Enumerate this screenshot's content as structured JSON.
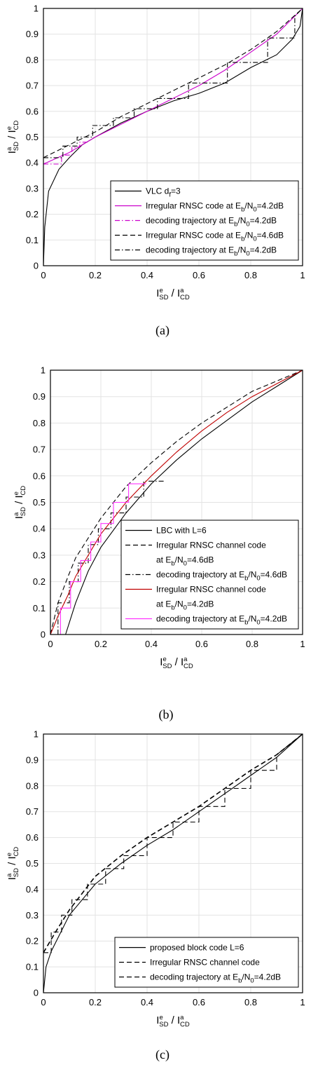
{
  "chart_data": [
    {
      "type": "line",
      "caption": "(a)",
      "legend": "lower right",
      "grid": true,
      "xlabel": [
        {
          "base": "I",
          "sup": "e",
          "sub": "SD"
        },
        " / ",
        {
          "base": "I",
          "sup": "a",
          "sub": "CD"
        }
      ],
      "ylabel": [
        {
          "base": "I",
          "sup": "a",
          "sub": "SD"
        },
        " / ",
        {
          "base": "I",
          "sup": "e",
          "sub": "CD"
        }
      ],
      "xlim": [
        0,
        1
      ],
      "ylim": [
        0,
        1
      ],
      "xticks": [
        0,
        0.2,
        0.4,
        0.6,
        0.8,
        1
      ],
      "yticks": [
        0,
        0.1,
        0.2,
        0.3,
        0.4,
        0.5,
        0.6,
        0.7,
        0.8,
        0.9,
        1
      ],
      "series": [
        {
          "name": [
            [
              "VLC d",
              {
                "sub": "f"
              },
              "=3"
            ]
          ],
          "color": "#000000",
          "linestyle": "solid",
          "x": [
            0,
            0.005,
            0.02,
            0.06,
            0.1,
            0.15,
            0.2,
            0.3,
            0.4,
            0.5,
            0.6,
            0.7,
            0.8,
            0.9,
            0.96,
            0.99,
            1
          ],
          "values": [
            0,
            0.15,
            0.29,
            0.375,
            0.42,
            0.47,
            0.5,
            0.555,
            0.6,
            0.64,
            0.67,
            0.71,
            0.77,
            0.82,
            0.88,
            0.93,
            1
          ]
        },
        {
          "name": [
            [
              "Irregular RNSC code at E",
              {
                "sub": "b"
              },
              "/N",
              {
                "sub": "0"
              },
              "=4.2dB"
            ]
          ],
          "color": "#cc00cc",
          "linestyle": "solid",
          "x": [
            0,
            0.1,
            0.2,
            0.3,
            0.4,
            0.5,
            0.6,
            0.7,
            0.8,
            0.9,
            1
          ],
          "values": [
            0.395,
            0.44,
            0.5,
            0.55,
            0.6,
            0.65,
            0.7,
            0.76,
            0.83,
            0.9,
            1
          ]
        },
        {
          "name": [
            [
              "decoding trajectory at E",
              {
                "sub": "b"
              },
              "/N",
              {
                "sub": "0"
              },
              "=4.2dB"
            ]
          ],
          "color": "#cc00cc",
          "linestyle": "dashdot",
          "x": [
            0,
            0.07,
            0.07,
            0.11,
            0.11,
            0.14,
            0.14,
            0.17
          ],
          "values": [
            0.395,
            0.395,
            0.43,
            0.43,
            0.46,
            0.46,
            0.48,
            0.48
          ]
        },
        {
          "name": [
            [
              "Irregular RNSC code at E",
              {
                "sub": "b"
              },
              "/N",
              {
                "sub": "0"
              },
              "=4.6dB"
            ]
          ],
          "color": "#000000",
          "linestyle": "dashed",
          "x": [
            0,
            0.1,
            0.2,
            0.3,
            0.4,
            0.5,
            0.6,
            0.7,
            0.8,
            0.9,
            1
          ],
          "values": [
            0.42,
            0.47,
            0.52,
            0.58,
            0.63,
            0.68,
            0.73,
            0.78,
            0.84,
            0.91,
            1
          ]
        },
        {
          "name": [
            [
              "decoding trajectory at E",
              {
                "sub": "b"
              },
              "/N",
              {
                "sub": "0"
              },
              "=4.2dB"
            ]
          ],
          "color": "#000000",
          "linestyle": "dashdot",
          "x": [
            0,
            0.075,
            0.075,
            0.13,
            0.13,
            0.19,
            0.19,
            0.27,
            0.27,
            0.35,
            0.35,
            0.44,
            0.44,
            0.56,
            0.56,
            0.71,
            0.71,
            0.865,
            0.865,
            0.97,
            0.97,
            1
          ],
          "values": [
            0.42,
            0.42,
            0.465,
            0.465,
            0.5,
            0.5,
            0.545,
            0.545,
            0.575,
            0.575,
            0.61,
            0.61,
            0.65,
            0.65,
            0.71,
            0.71,
            0.79,
            0.79,
            0.885,
            0.885,
            0.97,
            1
          ]
        }
      ]
    },
    {
      "type": "line",
      "caption": "(b)",
      "legend": "lower right",
      "grid": true,
      "xlabel": [
        {
          "base": "I",
          "sup": "e",
          "sub": "SD"
        },
        " / ",
        {
          "base": "I",
          "sup": "a",
          "sub": "CD"
        }
      ],
      "ylabel": [
        {
          "base": "I",
          "sup": "a",
          "sub": "SD"
        },
        " / ",
        {
          "base": "I",
          "sup": "e",
          "sub": "CD"
        }
      ],
      "xlim": [
        0,
        1
      ],
      "ylim": [
        0,
        1
      ],
      "xticks": [
        0,
        0.2,
        0.4,
        0.6,
        0.8,
        1
      ],
      "yticks": [
        0,
        0.1,
        0.2,
        0.3,
        0.4,
        0.5,
        0.6,
        0.7,
        0.8,
        0.9,
        1
      ],
      "series": [
        {
          "name": [
            [
              "LBC with L=6"
            ]
          ],
          "color": "#000000",
          "linestyle": "solid",
          "x": [
            0.06,
            0.1,
            0.15,
            0.2,
            0.3,
            0.4,
            0.5,
            0.6,
            0.7,
            0.8,
            0.9,
            1
          ],
          "values": [
            0,
            0.12,
            0.24,
            0.33,
            0.46,
            0.57,
            0.66,
            0.74,
            0.81,
            0.88,
            0.94,
            1
          ]
        },
        {
          "name": [
            [
              "Irregular RNSC channel code"
            ],
            [
              "at E",
              {
                "sub": "b"
              },
              "/N",
              {
                "sub": "0"
              },
              "=4.6dB"
            ]
          ],
          "color": "#000000",
          "linestyle": "dashed",
          "x": [
            0,
            0.03,
            0.07,
            0.1,
            0.2,
            0.3,
            0.4,
            0.5,
            0.6,
            0.7,
            0.8,
            0.9,
            1
          ],
          "values": [
            0,
            0.12,
            0.22,
            0.29,
            0.44,
            0.56,
            0.65,
            0.73,
            0.8,
            0.86,
            0.92,
            0.96,
            1
          ]
        },
        {
          "name": [
            [
              "decoding trajectory at E",
              {
                "sub": "b"
              },
              "/N",
              {
                "sub": "0"
              },
              "=4.6dB"
            ]
          ],
          "color": "#000000",
          "linestyle": "dashdot",
          "x": [
            0.03,
            0.03,
            0.075,
            0.075,
            0.11,
            0.11,
            0.15,
            0.15,
            0.19,
            0.19,
            0.24,
            0.24,
            0.3,
            0.3,
            0.37,
            0.37,
            0.45
          ],
          "values": [
            0,
            0.12,
            0.12,
            0.2,
            0.2,
            0.27,
            0.27,
            0.34,
            0.34,
            0.4,
            0.4,
            0.46,
            0.46,
            0.52,
            0.52,
            0.58,
            0.58
          ]
        },
        {
          "name": [
            [
              "Irregular RNSC channel code"
            ],
            [
              "at E",
              {
                "sub": "b"
              },
              "/N",
              {
                "sub": "0"
              },
              "=4.2dB"
            ]
          ],
          "color": "#c00000",
          "linestyle": "solid",
          "x": [
            0,
            0.03,
            0.07,
            0.1,
            0.2,
            0.3,
            0.4,
            0.5,
            0.6,
            0.7,
            0.8,
            0.9,
            1
          ],
          "values": [
            0,
            0.07,
            0.15,
            0.22,
            0.38,
            0.5,
            0.6,
            0.69,
            0.77,
            0.84,
            0.9,
            0.95,
            1
          ]
        },
        {
          "name": [
            [
              "decoding trajectory at E",
              {
                "sub": "b"
              },
              "/N",
              {
                "sub": "0"
              },
              "=4.2dB"
            ]
          ],
          "color": "#ff33ff",
          "linestyle": "solid",
          "x": [
            0,
            0.04,
            0.04,
            0.08,
            0.08,
            0.12,
            0.12,
            0.16,
            0.16,
            0.2,
            0.2,
            0.25,
            0.25,
            0.31,
            0.31,
            0.38
          ],
          "values": [
            0,
            0,
            0.1,
            0.1,
            0.2,
            0.2,
            0.28,
            0.28,
            0.35,
            0.35,
            0.42,
            0.42,
            0.5,
            0.5,
            0.57,
            0.57
          ]
        }
      ]
    },
    {
      "type": "line",
      "caption": "(c)",
      "legend": "lower right",
      "grid": true,
      "xlabel": [
        {
          "base": "I",
          "sup": "e",
          "sub": "SD"
        },
        " / ",
        {
          "base": "I",
          "sup": "a",
          "sub": "CD"
        }
      ],
      "ylabel": [
        {
          "base": "I",
          "sup": "a",
          "sub": "SD"
        },
        " / ",
        {
          "base": "I",
          "sup": "e",
          "sub": "CD"
        }
      ],
      "xlim": [
        0,
        1
      ],
      "ylim": [
        0,
        1
      ],
      "xticks": [
        0,
        0.2,
        0.4,
        0.6,
        0.8,
        1
      ],
      "yticks": [
        0,
        0.1,
        0.2,
        0.3,
        0.4,
        0.5,
        0.6,
        0.7,
        0.8,
        0.9,
        1
      ],
      "series": [
        {
          "name": [
            [
              "proposed block code L=6"
            ]
          ],
          "color": "#000000",
          "linestyle": "solid",
          "x": [
            0,
            0.01,
            0.03,
            0.1,
            0.2,
            0.3,
            0.4,
            0.5,
            0.6,
            0.7,
            0.8,
            0.9,
            1
          ],
          "values": [
            0,
            0.1,
            0.16,
            0.3,
            0.42,
            0.5,
            0.57,
            0.63,
            0.7,
            0.77,
            0.84,
            0.91,
            1
          ]
        },
        {
          "name": [
            [
              "Irregular RNSC channel code"
            ]
          ],
          "color": "#000000",
          "linestyle": "dashed",
          "x": [
            0,
            0.05,
            0.1,
            0.2,
            0.3,
            0.4,
            0.5,
            0.6,
            0.7,
            0.8,
            0.9,
            1
          ],
          "values": [
            0.155,
            0.24,
            0.32,
            0.45,
            0.53,
            0.6,
            0.66,
            0.72,
            0.79,
            0.86,
            0.92,
            1
          ]
        },
        {
          "name": [
            [
              "decoding trajectory at E",
              {
                "sub": "b"
              },
              "/N",
              {
                "sub": "0"
              },
              "=4.2dB"
            ]
          ],
          "color": "#000000",
          "linestyle": "dashed",
          "x": [
            0,
            0.03,
            0.03,
            0.07,
            0.07,
            0.11,
            0.11,
            0.17,
            0.17,
            0.24,
            0.24,
            0.31,
            0.31,
            0.4,
            0.4,
            0.5,
            0.5,
            0.6,
            0.6,
            0.7,
            0.7,
            0.8,
            0.8,
            0.9,
            0.9,
            1
          ],
          "values": [
            0.155,
            0.155,
            0.235,
            0.235,
            0.3,
            0.3,
            0.36,
            0.36,
            0.42,
            0.42,
            0.48,
            0.48,
            0.53,
            0.53,
            0.6,
            0.6,
            0.66,
            0.66,
            0.72,
            0.72,
            0.79,
            0.79,
            0.86,
            0.86,
            0.92,
            1
          ]
        }
      ]
    }
  ]
}
